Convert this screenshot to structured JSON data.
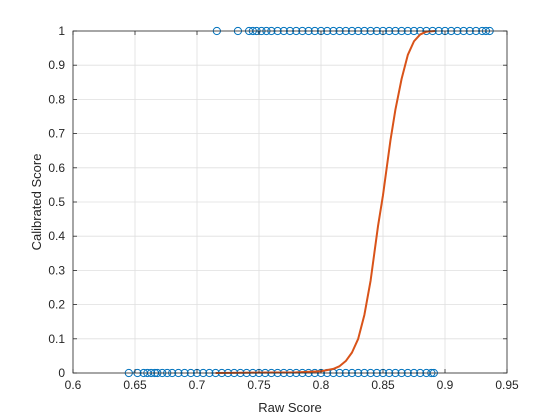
{
  "chart_data": {
    "type": "scatter",
    "title": "",
    "xlabel": "Raw Score",
    "ylabel": "Calibrated Score",
    "xlim": [
      0.6,
      0.95
    ],
    "ylim": [
      0,
      1
    ],
    "grid": true,
    "legend": "none",
    "x_ticks": [
      0.6,
      0.65,
      0.7,
      0.75,
      0.8,
      0.85,
      0.9,
      0.95
    ],
    "x_tick_labels": [
      "0.6",
      "0.65",
      "0.7",
      "0.75",
      "0.8",
      "0.85",
      "0.9",
      "0.95"
    ],
    "y_ticks": [
      0,
      0.1,
      0.2,
      0.3,
      0.4,
      0.5,
      0.6,
      0.7,
      0.8,
      0.9,
      1
    ],
    "y_tick_labels": [
      "0",
      "0.1",
      "0.2",
      "0.3",
      "0.4",
      "0.5",
      "0.6",
      "0.7",
      "0.8",
      "0.9",
      "1"
    ],
    "series": [
      {
        "kind": "scatter",
        "marker": "circle-open",
        "color": "#0072BD",
        "points": [
          [
            0.645,
            0
          ],
          [
            0.652,
            0
          ],
          [
            0.657,
            0
          ],
          [
            0.66,
            0
          ],
          [
            0.663,
            0
          ],
          [
            0.666,
            0
          ],
          [
            0.668,
            0
          ],
          [
            0.672,
            0
          ],
          [
            0.676,
            0
          ],
          [
            0.68,
            0
          ],
          [
            0.685,
            0
          ],
          [
            0.69,
            0
          ],
          [
            0.695,
            0
          ],
          [
            0.7,
            0
          ],
          [
            0.705,
            0
          ],
          [
            0.71,
            0
          ],
          [
            0.715,
            0
          ],
          [
            0.72,
            0
          ],
          [
            0.725,
            0
          ],
          [
            0.73,
            0
          ],
          [
            0.735,
            0
          ],
          [
            0.74,
            0
          ],
          [
            0.745,
            0
          ],
          [
            0.75,
            0
          ],
          [
            0.755,
            0
          ],
          [
            0.76,
            0
          ],
          [
            0.765,
            0
          ],
          [
            0.77,
            0
          ],
          [
            0.775,
            0
          ],
          [
            0.78,
            0
          ],
          [
            0.785,
            0
          ],
          [
            0.79,
            0
          ],
          [
            0.795,
            0
          ],
          [
            0.8,
            0
          ],
          [
            0.805,
            0
          ],
          [
            0.81,
            0
          ],
          [
            0.815,
            0
          ],
          [
            0.82,
            0
          ],
          [
            0.825,
            0
          ],
          [
            0.83,
            0
          ],
          [
            0.835,
            0
          ],
          [
            0.84,
            0
          ],
          [
            0.845,
            0
          ],
          [
            0.85,
            0
          ],
          [
            0.855,
            0
          ],
          [
            0.86,
            0
          ],
          [
            0.865,
            0
          ],
          [
            0.87,
            0
          ],
          [
            0.875,
            0
          ],
          [
            0.88,
            0
          ],
          [
            0.885,
            0
          ],
          [
            0.889,
            0
          ],
          [
            0.891,
            0
          ],
          [
            0.716,
            1
          ],
          [
            0.733,
            1
          ],
          [
            0.742,
            1
          ],
          [
            0.745,
            1
          ],
          [
            0.748,
            1
          ],
          [
            0.752,
            1
          ],
          [
            0.756,
            1
          ],
          [
            0.76,
            1
          ],
          [
            0.765,
            1
          ],
          [
            0.77,
            1
          ],
          [
            0.775,
            1
          ],
          [
            0.78,
            1
          ],
          [
            0.785,
            1
          ],
          [
            0.79,
            1
          ],
          [
            0.795,
            1
          ],
          [
            0.8,
            1
          ],
          [
            0.805,
            1
          ],
          [
            0.81,
            1
          ],
          [
            0.815,
            1
          ],
          [
            0.82,
            1
          ],
          [
            0.825,
            1
          ],
          [
            0.83,
            1
          ],
          [
            0.835,
            1
          ],
          [
            0.84,
            1
          ],
          [
            0.845,
            1
          ],
          [
            0.85,
            1
          ],
          [
            0.855,
            1
          ],
          [
            0.86,
            1
          ],
          [
            0.865,
            1
          ],
          [
            0.87,
            1
          ],
          [
            0.875,
            1
          ],
          [
            0.88,
            1
          ],
          [
            0.885,
            1
          ],
          [
            0.89,
            1
          ],
          [
            0.895,
            1
          ],
          [
            0.9,
            1
          ],
          [
            0.905,
            1
          ],
          [
            0.91,
            1
          ],
          [
            0.915,
            1
          ],
          [
            0.92,
            1
          ],
          [
            0.925,
            1
          ],
          [
            0.93,
            1
          ],
          [
            0.933,
            1
          ],
          [
            0.936,
            1
          ]
        ]
      },
      {
        "kind": "line",
        "color": "#D95319",
        "points": [
          [
            0.715,
            0
          ],
          [
            0.78,
            0.002
          ],
          [
            0.8,
            0.005
          ],
          [
            0.81,
            0.012
          ],
          [
            0.815,
            0.02
          ],
          [
            0.82,
            0.035
          ],
          [
            0.825,
            0.06
          ],
          [
            0.83,
            0.1
          ],
          [
            0.835,
            0.17
          ],
          [
            0.84,
            0.27
          ],
          [
            0.843,
            0.35
          ],
          [
            0.846,
            0.43
          ],
          [
            0.85,
            0.52
          ],
          [
            0.853,
            0.6
          ],
          [
            0.856,
            0.68
          ],
          [
            0.86,
            0.77
          ],
          [
            0.865,
            0.86
          ],
          [
            0.87,
            0.93
          ],
          [
            0.875,
            0.97
          ],
          [
            0.88,
            0.99
          ],
          [
            0.885,
            0.998
          ],
          [
            0.892,
            1
          ]
        ]
      }
    ]
  }
}
